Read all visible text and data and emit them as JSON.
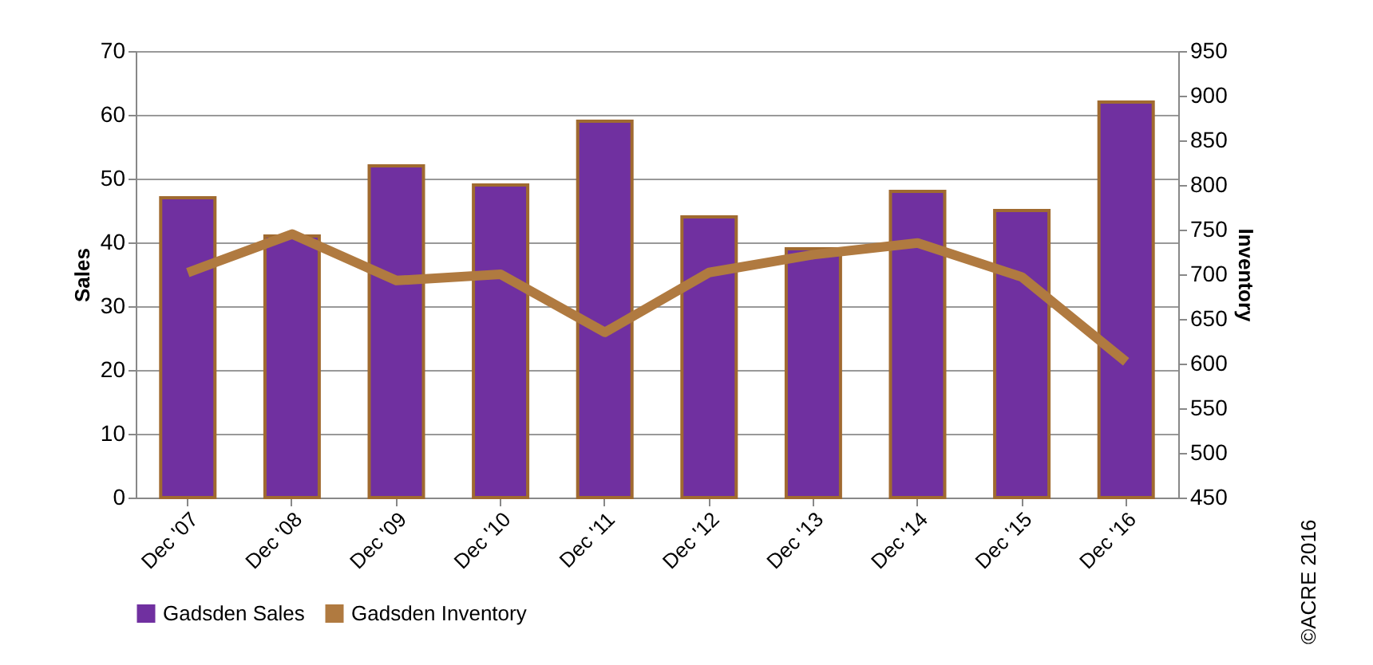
{
  "chart_data": {
    "type": "bar",
    "categories": [
      "Dec '07",
      "Dec '08",
      "Dec '09",
      "Dec '10",
      "Dec '11",
      "Dec '12",
      "Dec '13",
      "Dec '14",
      "Dec '15",
      "Dec '16"
    ],
    "series": [
      {
        "name": "Gadsden Sales",
        "color": "#7030a0",
        "values": [
          47,
          41,
          52,
          49,
          59,
          44,
          39,
          48,
          45,
          62
        ]
      },
      {
        "name": "Gadsden Inventory",
        "type": "line",
        "axis": "y2",
        "color": "#b07a40",
        "values": [
          702,
          745,
          693,
          700,
          635,
          702,
          722,
          735,
          697,
          602
        ]
      }
    ],
    "ylabel": "Sales",
    "y2label": "Inventory",
    "ylim": [
      0,
      70
    ],
    "yticks": [
      0,
      10,
      20,
      30,
      40,
      50,
      60,
      70
    ],
    "y2lim": [
      450,
      950
    ],
    "y2ticks": [
      450,
      500,
      550,
      600,
      650,
      700,
      750,
      800,
      850,
      900,
      950
    ],
    "grid": "y",
    "legend": "bottom",
    "marker": "none",
    "annotations": [
      "©ACRE 2016"
    ]
  }
}
